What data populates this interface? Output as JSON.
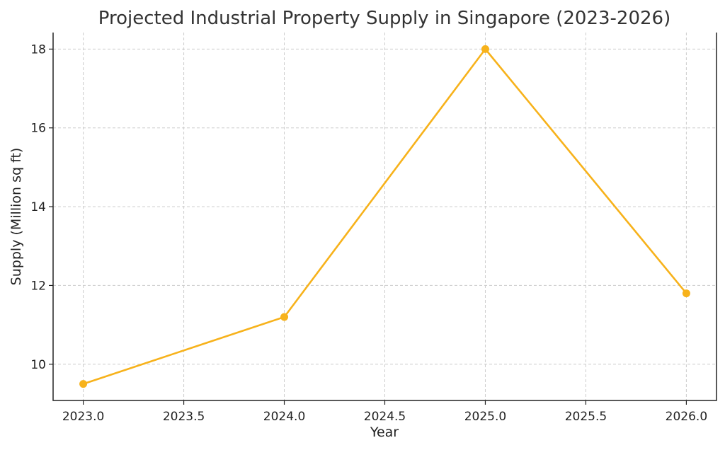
{
  "chart_data": {
    "type": "line",
    "title": "Projected Industrial Property Supply in Singapore (2023-2026)",
    "xlabel": "Year",
    "ylabel": "Supply (Million sq ft)",
    "x": [
      2023,
      2024,
      2025,
      2026
    ],
    "series": [
      {
        "name": "",
        "values": [
          9.5,
          11.2,
          18.0,
          11.8
        ],
        "color": "#f7b21b",
        "marker": "circle"
      }
    ],
    "xticks": [
      "2023.0",
      "2023.5",
      "2024.0",
      "2024.5",
      "2025.0",
      "2025.5",
      "2026.0"
    ],
    "xtick_values": [
      2023.0,
      2023.5,
      2024.0,
      2024.5,
      2025.0,
      2025.5,
      2026.0
    ],
    "yticks": [
      "10",
      "12",
      "14",
      "16",
      "18"
    ],
    "ytick_values": [
      10,
      12,
      14,
      16,
      18
    ],
    "xlim": [
      2022.85,
      2026.15
    ],
    "ylim": [
      9.08,
      18.42
    ],
    "grid": true,
    "legend": "none"
  }
}
